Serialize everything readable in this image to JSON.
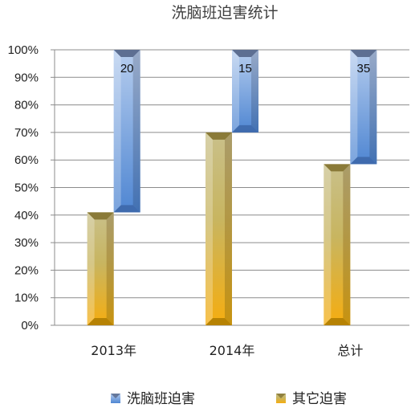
{
  "chart_data": {
    "type": "bar",
    "stacked": true,
    "percent_stacked": true,
    "title": "洗脑班迫害统计",
    "categories": [
      "2013年",
      "2014年",
      "总计"
    ],
    "series": [
      {
        "name": "其它迫害",
        "values": [
          41,
          70,
          58.5
        ],
        "color": "#d2a020"
      },
      {
        "name": "洗脑班迫害",
        "values": [
          59,
          30,
          41.5
        ],
        "color": "#5b8fd6"
      }
    ],
    "data_labels": {
      "洗脑班迫害": [
        "20",
        "15",
        "35"
      ]
    },
    "ylim": [
      0,
      100
    ],
    "yticks": [
      "0%",
      "10%",
      "20%",
      "30%",
      "40%",
      "50%",
      "60%",
      "70%",
      "80%",
      "90%",
      "100%"
    ],
    "grid": true,
    "legend_position": "bottom"
  }
}
